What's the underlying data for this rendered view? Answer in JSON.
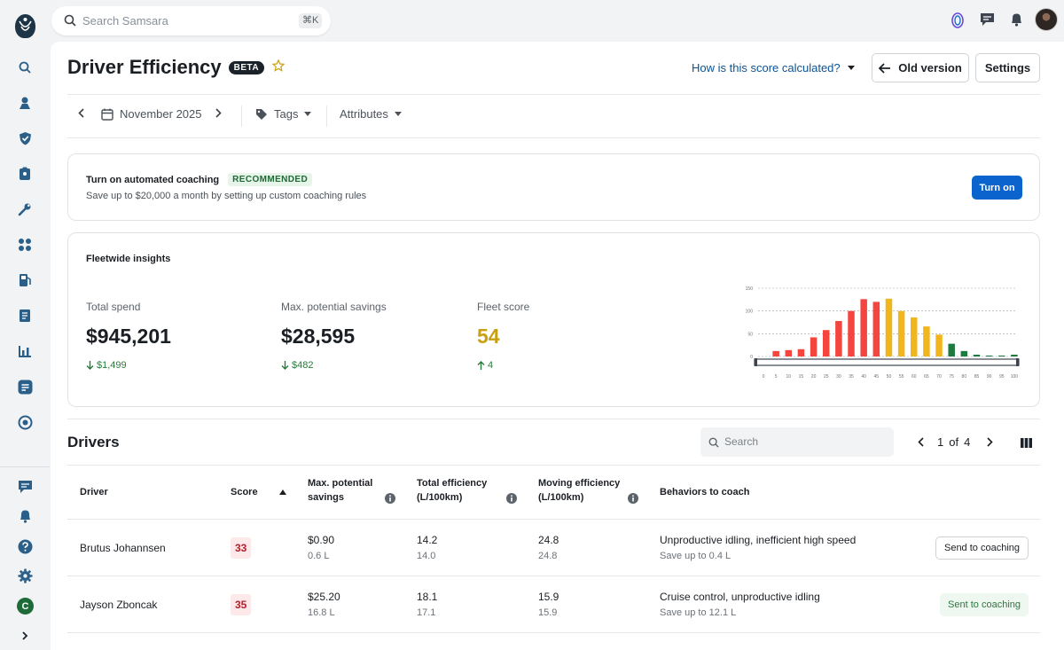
{
  "top_search": {
    "placeholder": "Search Samsara",
    "shortcut": "⌘K"
  },
  "header": {
    "title": "Driver Efficiency",
    "badge": "BETA",
    "how_link": "How is this score calculated?",
    "old_version": "Old version",
    "settings": "Settings"
  },
  "filters": {
    "month": "November 2025",
    "tags": "Tags",
    "attributes": "Attributes"
  },
  "coaching": {
    "title": "Turn on automated coaching",
    "badge": "RECOMMENDED",
    "subtitle": "Save up to $20,000 a month by setting up custom coaching rules",
    "button": "Turn on"
  },
  "insights": {
    "title": "Fleetwide insights",
    "stats": [
      {
        "label": "Total spend",
        "value": "$945,201",
        "delta": "$1,499",
        "direction": "down"
      },
      {
        "label": "Max. potential savings",
        "value": "$28,595",
        "delta": "$482",
        "direction": "down"
      },
      {
        "label": "Fleet score",
        "value": "54",
        "delta": "4",
        "direction": "up"
      }
    ]
  },
  "chart_data": {
    "type": "bar",
    "title": "",
    "xlabel": "",
    "ylabel": "",
    "ylim": [
      0,
      150
    ],
    "yticks": [
      "150",
      "100",
      "50",
      "0"
    ],
    "xticks": [
      "0",
      "5",
      "10",
      "15",
      "20",
      "25",
      "30",
      "35",
      "40",
      "45",
      "50",
      "55",
      "60",
      "65",
      "70",
      "75",
      "80",
      "85",
      "90",
      "95",
      "100"
    ],
    "categories": [
      "0",
      "5",
      "10",
      "15",
      "20",
      "25",
      "30",
      "35",
      "40",
      "45",
      "50",
      "55",
      "60",
      "65",
      "70",
      "75",
      "80",
      "85",
      "90",
      "95",
      "100"
    ],
    "values": [
      0,
      12,
      14,
      16,
      42,
      58,
      78,
      100,
      126,
      120,
      127,
      100,
      86,
      66,
      48,
      28,
      12,
      4,
      2,
      2,
      4
    ],
    "colors": [
      "#f4463f",
      "#f4463f",
      "#f4463f",
      "#f4463f",
      "#f4463f",
      "#f4463f",
      "#f4463f",
      "#f4463f",
      "#f4463f",
      "#f4463f",
      "#f2b61d",
      "#f2b61d",
      "#f2b61d",
      "#f2b61d",
      "#f2b61d",
      "#1e7a3e",
      "#1e7a3e",
      "#1e7a3e",
      "#1e7a3e",
      "#1e7a3e",
      "#1e7a3e"
    ],
    "grid": true,
    "has_range_slider": true
  },
  "drivers": {
    "title": "Drivers",
    "search_placeholder": "Search",
    "page": "1",
    "of": "of",
    "total_pages": "4",
    "columns": {
      "driver": "Driver",
      "score": "Score",
      "max_savings_1": "Max. potential",
      "max_savings_2": "savings",
      "total_eff_1": "Total efficiency",
      "total_eff_2": "(L/100km)",
      "moving_eff_1": "Moving efficiency",
      "moving_eff_2": "(L/100km)",
      "behaviors": "Behaviors to coach"
    },
    "rows": [
      {
        "name": "Brutus Johannsen",
        "score": "33",
        "savings": "$0.90",
        "savings_sub": "0.6 L",
        "total": "14.2",
        "total_sub": "14.0",
        "moving": "24.8",
        "moving_sub": "24.8",
        "behaviors": "Unproductive idling, inefficient high speed",
        "behaviors_sub": "Save up to 0.4 L",
        "action": "Send to coaching"
      },
      {
        "name": "Jayson Zboncak",
        "score": "35",
        "savings": "$25.20",
        "savings_sub": "16.8 L",
        "total": "18.1",
        "total_sub": "17.1",
        "moving": "15.9",
        "moving_sub": "15.9",
        "behaviors": "Cruise control, unproductive idling",
        "behaviors_sub": "Save up to 12.1 L",
        "action": "Sent to coaching"
      }
    ]
  }
}
